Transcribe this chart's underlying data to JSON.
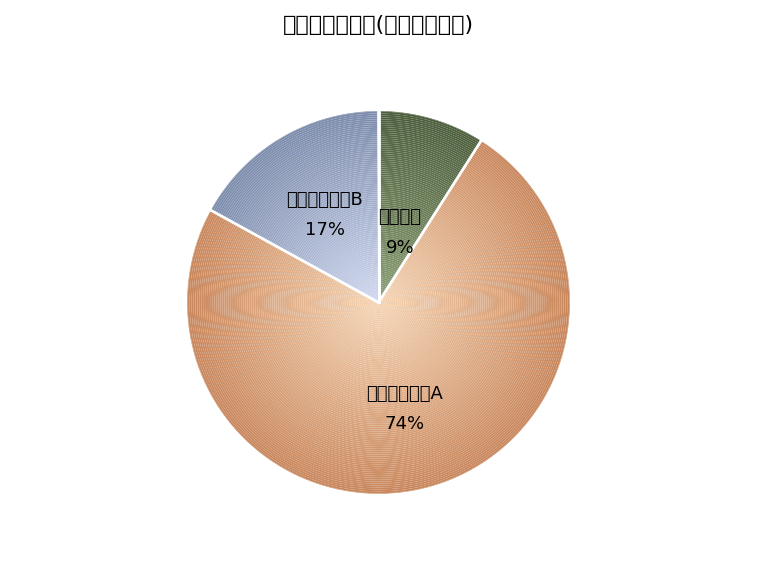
{
  "title": "ポートフォリオ(投賄錠柄配分)",
  "labels": [
    "投賄資金",
    "投賄ファンドA",
    "投賄ファンドB"
  ],
  "values": [
    9,
    74,
    17
  ],
  "colors": [
    "#6b7c5e",
    "#e8b898",
    "#b4bcd4"
  ],
  "startangle": 90,
  "title_fontsize": 16,
  "label_fontsize": 13,
  "background_color": "#ffffff",
  "text_color": "#000000"
}
